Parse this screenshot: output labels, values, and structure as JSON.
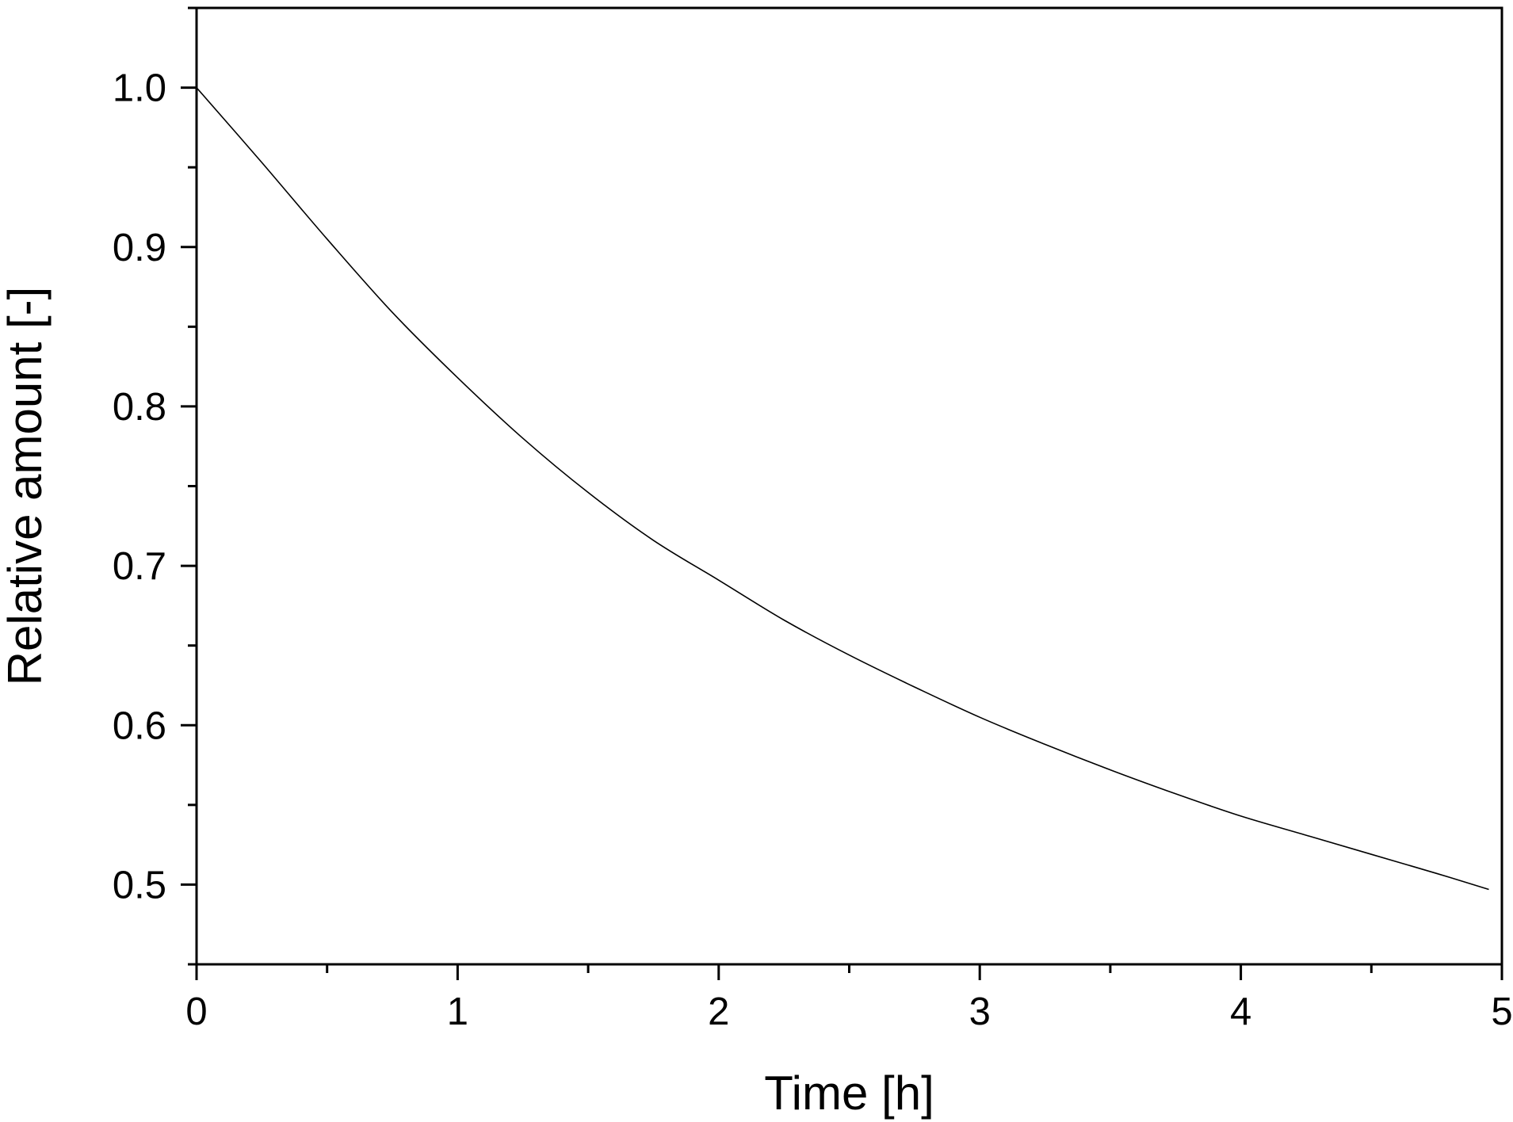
{
  "chart_data": {
    "type": "line",
    "title": "",
    "xlabel": "Time [h]",
    "ylabel": "Relative amount [-]",
    "xlim": [
      0,
      5
    ],
    "ylim": [
      0.45,
      1.05
    ],
    "x_ticks": [
      0,
      1,
      2,
      3,
      4,
      5
    ],
    "x_tick_labels": [
      "0",
      "1",
      "2",
      "3",
      "4",
      "5"
    ],
    "x_minor_step": 0.5,
    "y_ticks": [
      0.5,
      0.6,
      0.7,
      0.8,
      0.9,
      1.0
    ],
    "y_tick_labels": [
      "0.5",
      "0.6",
      "0.7",
      "0.8",
      "0.9",
      "1.0"
    ],
    "y_minor_step": 0.05,
    "grid": false,
    "legend": "none",
    "line_color": "#000000",
    "series": [
      {
        "x": [
          0,
          0.25,
          0.5,
          0.75,
          1.0,
          1.25,
          1.5,
          1.75,
          2.0,
          2.25,
          2.5,
          2.75,
          3.0,
          3.25,
          3.5,
          3.75,
          4.0,
          4.25,
          4.5,
          4.75,
          4.95
        ],
        "y": [
          1.0,
          0.953,
          0.905,
          0.859,
          0.818,
          0.78,
          0.746,
          0.716,
          0.691,
          0.666,
          0.644,
          0.624,
          0.605,
          0.588,
          0.572,
          0.557,
          0.543,
          0.531,
          0.519,
          0.507,
          0.497
        ]
      }
    ]
  }
}
